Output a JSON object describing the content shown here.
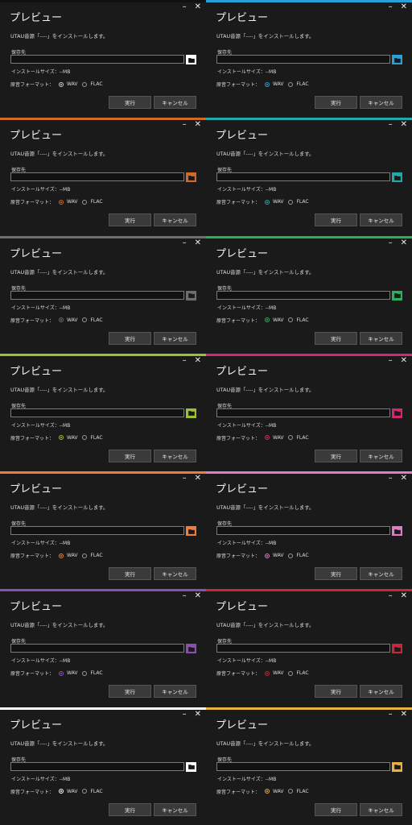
{
  "dialog": {
    "title": "プレビュー",
    "minimize_glyph": "–",
    "close_glyph": "✕",
    "message": "UTAU音源「----」をインストールします。",
    "save_label": "保存先",
    "path_value": "",
    "size_text": "インストールサイズ：--MB",
    "format_label": "原音フォーマット：",
    "format_options": [
      "WAV",
      "FLAC"
    ],
    "selected_format": "WAV",
    "run_label": "実行",
    "cancel_label": "キャンセル"
  },
  "themes": [
    {
      "accent": "#111111",
      "icon_color": "#ffffff",
      "folder_bg": "#ffffff",
      "folder_fill": "#111111",
      "top": "#111111"
    },
    {
      "accent": "#2aa0d8",
      "folder_bg": "#2aa0d8",
      "folder_fill": "#1a1a1a",
      "top": "#2aa0d8"
    },
    {
      "accent": "#d06a2a",
      "folder_bg": "#d06a2a",
      "folder_fill": "#1a1a1a",
      "top": "#d06a2a"
    },
    {
      "accent": "#22a8a8",
      "folder_bg": "#22a8a8",
      "folder_fill": "#1a1a1a",
      "top": "#22a8a8"
    },
    {
      "accent": "#6e6e6e",
      "folder_bg": "#6e6e6e",
      "folder_fill": "#1a1a1a",
      "top": "#6e6e6e"
    },
    {
      "accent": "#27b35a",
      "folder_bg": "#27b35a",
      "folder_fill": "#1a1a1a",
      "top": "#27b35a"
    },
    {
      "accent": "#9cc12e",
      "folder_bg": "#9cc12e",
      "folder_fill": "#1a1a1a",
      "top": "#9cc12e"
    },
    {
      "accent": "#d6266f",
      "folder_bg": "#d6266f",
      "folder_fill": "#1a1a1a",
      "top": "#d6266f"
    },
    {
      "accent": "#ef7d3c",
      "folder_bg": "#ef7d3c",
      "folder_fill": "#1a1a1a",
      "top": "#ef7d3c"
    },
    {
      "accent": "#e07cc6",
      "folder_bg": "#e07cc6",
      "folder_fill": "#1a1a1a",
      "top": "#e07cc6"
    },
    {
      "accent": "#8a4fb3",
      "folder_bg": "#8a4fb3",
      "folder_fill": "#1a1a1a",
      "top": "#8a4fb3"
    },
    {
      "accent": "#c8263a",
      "folder_bg": "#c8263a",
      "folder_fill": "#1a1a1a",
      "top": "#c8263a"
    },
    {
      "accent": "#ffffff",
      "folder_bg": "#ffffff",
      "folder_fill": "#1a1a1a",
      "top": "#ffffff"
    },
    {
      "accent": "#e9b042",
      "folder_bg": "#e9b042",
      "folder_fill": "#1a1a1a",
      "top": "#e9b042"
    }
  ],
  "icons": {
    "folder": "folder-icon",
    "minimize": "minimize-icon",
    "close": "close-icon"
  }
}
